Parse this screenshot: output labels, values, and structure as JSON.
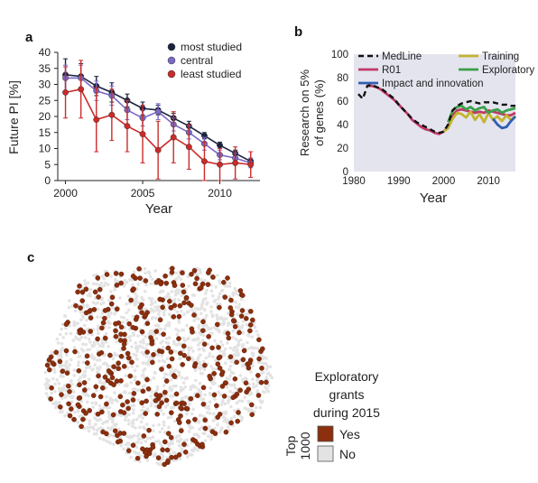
{
  "chart_data": [
    {
      "panel": "a",
      "type": "line",
      "xlabel": "Year",
      "ylabel": "Future PI [%]",
      "xlim": [
        1999.5,
        2012.6
      ],
      "ylim": [
        0,
        40
      ],
      "x_ticks": [
        "2000",
        "2005",
        "2010"
      ],
      "y_ticks": [
        "0",
        "5",
        "10",
        "15",
        "20",
        "25",
        "30",
        "35",
        "40"
      ],
      "grid": false,
      "legend_position": "top-right",
      "error_bars": true,
      "x": [
        2000,
        2001,
        2002,
        2003,
        2004,
        2005,
        2006,
        2007,
        2008,
        2009,
        2010,
        2011,
        2012
      ],
      "series": [
        {
          "name": "most studied",
          "color": "#1b2340",
          "values": [
            33,
            32.5,
            29.5,
            27.5,
            25,
            22.5,
            22,
            19.5,
            17,
            14,
            11,
            8.5,
            6
          ],
          "err": [
            5,
            4,
            3,
            3,
            2,
            2,
            1.5,
            1.5,
            1.5,
            1,
            1,
            1,
            1
          ]
        },
        {
          "name": "central",
          "color": "#7b68c8",
          "values": [
            32,
            32,
            28,
            26.5,
            22,
            19.5,
            21.5,
            17.5,
            15,
            11.5,
            8,
            7,
            5.5
          ],
          "err": [
            4,
            4,
            3,
            3,
            3,
            2.5,
            2.5,
            2,
            2,
            2,
            1.5,
            1.5,
            1.5
          ]
        },
        {
          "name": "least studied",
          "color": "#cc2a2a",
          "values": [
            27.5,
            28.5,
            19,
            20.5,
            17,
            14.5,
            9.5,
            13.5,
            10.5,
            6,
            5,
            5.5,
            5
          ],
          "err": [
            8,
            9,
            10,
            8,
            8,
            9,
            9,
            8,
            7,
            6,
            5,
            5,
            4
          ]
        }
      ]
    },
    {
      "panel": "b",
      "type": "line",
      "xlabel": "Year",
      "ylabel": "Research on 5% of genes (%)",
      "xlim": [
        1980,
        2016
      ],
      "ylim": [
        0,
        100
      ],
      "x_ticks": [
        "1980",
        "1990",
        "2000",
        "2010"
      ],
      "y_ticks": [
        "0",
        "20",
        "40",
        "60",
        "80",
        "100"
      ],
      "grid": false,
      "background": "#e4e4ef",
      "legend_position": "top",
      "series": [
        {
          "name": "MedLine",
          "color": "#111111",
          "dashed": true,
          "x": [
            1981,
            1982,
            1983,
            1984,
            1985,
            1986,
            1987,
            1988,
            1989,
            1990,
            1991,
            1992,
            1993,
            1994,
            1995,
            1996,
            1997,
            1998,
            1999,
            2000,
            2001,
            2002,
            2003,
            2004,
            2005,
            2006,
            2007,
            2008,
            2009,
            2010,
            2011,
            2012,
            2013,
            2014,
            2015,
            2016
          ],
          "values": [
            66,
            62,
            73,
            74,
            72,
            71,
            68,
            65,
            62,
            57,
            53,
            49,
            45,
            42,
            40,
            38,
            36,
            34,
            33,
            34,
            40,
            52,
            56,
            58,
            59,
            60,
            59,
            58,
            59,
            59,
            59,
            58,
            57,
            57,
            56,
            56
          ]
        },
        {
          "name": "R01",
          "color": "#c03a66",
          "x": [
            1983,
            1984,
            1985,
            1986,
            1987,
            1988,
            1989,
            1990,
            1991,
            1992,
            1993,
            1994,
            1995,
            1996,
            1997,
            1998,
            1999,
            2000,
            2001,
            2002,
            2003,
            2004,
            2005,
            2006,
            2007,
            2008,
            2009,
            2010,
            2011,
            2012,
            2013,
            2014,
            2015,
            2016
          ],
          "values": [
            73,
            73,
            72,
            70,
            67,
            64,
            61,
            57,
            53,
            49,
            44,
            41,
            38,
            36,
            35,
            33,
            32,
            34,
            38,
            48,
            52,
            53,
            52,
            51,
            50,
            51,
            50,
            52,
            51,
            50,
            49,
            48,
            48,
            50
          ]
        },
        {
          "name": "Training",
          "color": "#c4b42e",
          "x": [
            2000,
            2001,
            2002,
            2003,
            2004,
            2005,
            2006,
            2007,
            2008,
            2009,
            2010,
            2011,
            2012,
            2013,
            2014,
            2015,
            2016
          ],
          "values": [
            34,
            37,
            45,
            50,
            49,
            46,
            51,
            44,
            49,
            42,
            50,
            44,
            47,
            43,
            48,
            44,
            47
          ]
        },
        {
          "name": "Exploratory",
          "color": "#3aa04a",
          "x": [
            2001,
            2002,
            2003,
            2004,
            2005,
            2006,
            2007,
            2008,
            2009,
            2010,
            2011,
            2012,
            2013,
            2014,
            2015,
            2016
          ],
          "values": [
            42,
            52,
            55,
            56,
            53,
            55,
            52,
            54,
            55,
            50,
            52,
            53,
            50,
            52,
            53,
            54
          ]
        },
        {
          "name": "Impact and innovation",
          "color": "#2f5fb0",
          "x": [
            2011,
            2012,
            2013,
            2014,
            2015,
            2016
          ],
          "values": [
            45,
            40,
            37,
            38,
            43,
            47
          ]
        }
      ]
    },
    {
      "panel": "c",
      "type": "scatter",
      "legend_title": "Exploratory grants during 2015",
      "legend_side_label": "Top 1000",
      "legend_items": [
        {
          "label": "Yes",
          "color": "#8b2f0e"
        },
        {
          "label": "No",
          "color": "#e3e3e3"
        }
      ]
    }
  ],
  "panel_labels": {
    "a": "a",
    "b": "b",
    "c": "c"
  }
}
